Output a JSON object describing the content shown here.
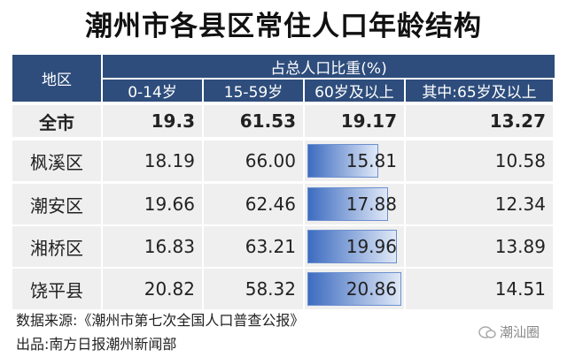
{
  "title": "潮州市各县区常住人口年龄结构",
  "table": {
    "header": {
      "region": "地区",
      "group": "占总人口比重(%)",
      "columns": [
        "0-14岁",
        "15-59岁",
        "60岁及以上",
        "其中:65岁及以上"
      ]
    },
    "rows": [
      [
        "全市",
        "19.3",
        "61.53",
        "19.17",
        "13.27"
      ],
      [
        "枫溪区",
        "18.19",
        "66.00",
        "15.81",
        "10.58"
      ],
      [
        "潮安区",
        "19.66",
        "62.46",
        "17.88",
        "12.34"
      ],
      [
        "湘桥区",
        "16.83",
        "63.21",
        "19.96",
        "13.89"
      ],
      [
        "饶平县",
        "20.82",
        "58.32",
        "20.86",
        "14.51"
      ]
    ]
  },
  "footer": {
    "source": "数据来源:《潮州市第七次全国人口普查公报》",
    "publisher": "出品:南方日报潮州新闻部"
  },
  "watermark": "潮汕圈"
}
